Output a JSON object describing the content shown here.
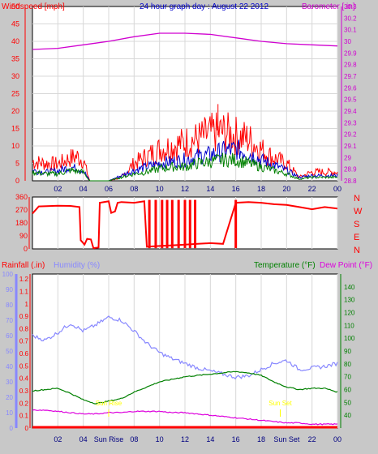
{
  "chart_data": [
    {
      "type": "line",
      "title": "24 hour graph day : August 22 2012",
      "ylabel_left": "Windspeed [mph]",
      "ylabel_right": "Barometer [.in]",
      "x_ticks": [
        "02",
        "04",
        "06",
        "08",
        "10",
        "12",
        "14",
        "16",
        "18",
        "20",
        "22",
        "00"
      ],
      "y_left_ticks": [
        "0",
        "5",
        "10",
        "15",
        "20",
        "25",
        "30",
        "35",
        "40",
        "45",
        "50"
      ],
      "y_right_ticks": [
        "28.8",
        "28.9",
        "29",
        "29.1",
        "29.2",
        "29.3",
        "29.4",
        "29.5",
        "29.6",
        "29.7",
        "29.8",
        "29.9",
        "30",
        "30.1",
        "30.2",
        "30.3"
      ],
      "ylim_left": [
        0,
        50
      ],
      "ylim_right": [
        28.8,
        30.3
      ],
      "series": [
        {
          "axis": "right",
          "color": "#d000d0",
          "points": [
            [
              0,
              29.93
            ],
            [
              2,
              29.94
            ],
            [
              4,
              29.97
            ],
            [
              6,
              30.0
            ],
            [
              8,
              30.04
            ],
            [
              10,
              30.07
            ],
            [
              12,
              30.07
            ],
            [
              14,
              30.06
            ],
            [
              16,
              30.03
            ],
            [
              18,
              30.0
            ],
            [
              20,
              29.98
            ],
            [
              22,
              29.97
            ],
            [
              24,
              29.96
            ]
          ]
        },
        {
          "axis": "left",
          "color": "#ff0000",
          "style": "spiky",
          "points": [
            [
              0,
              5.5
            ],
            [
              1,
              5
            ],
            [
              2,
              4.8
            ],
            [
              3,
              6.5
            ],
            [
              3.5,
              7
            ],
            [
              4,
              6
            ],
            [
              4.5,
              0
            ],
            [
              6,
              0
            ],
            [
              7,
              1
            ],
            [
              8,
              5
            ],
            [
              9,
              7
            ],
            [
              10,
              9
            ],
            [
              11,
              10
            ],
            [
              12,
              11
            ],
            [
              13,
              12
            ],
            [
              14,
              13.5
            ],
            [
              15,
              14
            ],
            [
              16,
              13
            ],
            [
              17,
              12
            ],
            [
              18,
              9
            ],
            [
              19,
              6.5
            ],
            [
              20,
              5
            ],
            [
              21,
              1
            ],
            [
              22,
              2.5
            ],
            [
              23,
              2.5
            ],
            [
              24,
              2.5
            ]
          ]
        },
        {
          "axis": "left",
          "color": "#0000cc",
          "style": "spiky",
          "points": [
            [
              0,
              3
            ],
            [
              1,
              2.5
            ],
            [
              2,
              2.8
            ],
            [
              3,
              4
            ],
            [
              4,
              3
            ],
            [
              4.5,
              0
            ],
            [
              6,
              0
            ],
            [
              8,
              3
            ],
            [
              9,
              4
            ],
            [
              10,
              5
            ],
            [
              11,
              5.5
            ],
            [
              12,
              6
            ],
            [
              13,
              7
            ],
            [
              14,
              7.5
            ],
            [
              15,
              8.5
            ],
            [
              16,
              9
            ],
            [
              17,
              8
            ],
            [
              18,
              6
            ],
            [
              19,
              4.5
            ],
            [
              20,
              3
            ],
            [
              21,
              1
            ],
            [
              22,
              1.5
            ],
            [
              23,
              1.5
            ],
            [
              24,
              1.5
            ]
          ]
        },
        {
          "axis": "left",
          "color": "#008000",
          "style": "spiky",
          "points": [
            [
              0,
              2.5
            ],
            [
              1,
              2
            ],
            [
              2,
              2
            ],
            [
              3,
              3
            ],
            [
              4,
              2.5
            ],
            [
              4.5,
              0
            ],
            [
              6,
              0
            ],
            [
              8,
              2
            ],
            [
              9,
              2.5
            ],
            [
              10,
              3.5
            ],
            [
              11,
              4
            ],
            [
              12,
              4
            ],
            [
              13,
              5
            ],
            [
              14,
              5.5
            ],
            [
              15,
              6
            ],
            [
              16,
              6
            ],
            [
              17,
              5
            ],
            [
              18,
              4
            ],
            [
              19,
              3
            ],
            [
              20,
              2
            ],
            [
              21,
              0.5
            ],
            [
              22,
              1
            ],
            [
              23,
              1
            ],
            [
              24,
              1
            ]
          ]
        }
      ]
    },
    {
      "type": "line",
      "ylabel_right": [
        "N",
        "W",
        "S",
        "E",
        "N"
      ],
      "y_left_ticks": [
        "0",
        "90",
        "180",
        "270",
        "360"
      ],
      "ylim": [
        0,
        360
      ],
      "x_ticks": [
        "02",
        "04",
        "06",
        "08",
        "10",
        "12",
        "14",
        "16",
        "18",
        "20",
        "22",
        "00"
      ],
      "series": [
        {
          "color": "#ff0000",
          "points": [
            [
              0,
              245
            ],
            [
              0.5,
              295
            ],
            [
              2,
              300
            ],
            [
              3,
              298
            ],
            [
              3.7,
              290
            ],
            [
              3.8,
              60
            ],
            [
              4.1,
              30
            ],
            [
              4.3,
              70
            ],
            [
              4.6,
              65
            ],
            [
              4.8,
              5
            ],
            [
              5.2,
              10
            ],
            [
              5.3,
              320
            ],
            [
              6,
              330
            ],
            [
              6.2,
              250
            ],
            [
              6.5,
              260
            ],
            [
              6.7,
              320
            ],
            [
              7,
              325
            ],
            [
              8,
              320
            ],
            [
              8.8,
              330
            ],
            [
              9,
              15
            ],
            [
              10,
              20
            ],
            [
              11,
              25
            ],
            [
              12,
              30
            ],
            [
              13,
              35
            ],
            [
              14,
              40
            ],
            [
              15,
              35
            ],
            [
              16,
              320
            ],
            [
              17,
              325
            ],
            [
              18,
              320
            ],
            [
              19,
              310
            ],
            [
              20,
              305
            ],
            [
              21,
              290
            ],
            [
              22,
              275
            ],
            [
              23,
              290
            ],
            [
              24,
              280
            ]
          ]
        }
      ]
    },
    {
      "type": "line",
      "ylabel_left_1": "Rainfall (.in)",
      "ylabel_left_2": "Humidity (%)",
      "ylabel_right_1": "Temperature (°F)",
      "ylabel_right_2": "Dew Point (°F)",
      "rain_ticks": [
        "0",
        "0.1",
        "0.2",
        "0.3",
        "0.4",
        "0.5",
        "0.6",
        "0.7",
        "0.8",
        "0.9",
        "1",
        "1.1",
        "1.2"
      ],
      "humidity_ticks": [
        "0",
        "10",
        "20",
        "30",
        "40",
        "50",
        "60",
        "70",
        "80",
        "90",
        "100"
      ],
      "temp_ticks": [
        "40",
        "50",
        "60",
        "70",
        "80",
        "90",
        "100",
        "110",
        "120",
        "130",
        "140"
      ],
      "x_ticks": [
        "02",
        "04",
        "Sun Rise",
        "08",
        "10",
        "12",
        "14",
        "16",
        "18",
        "Sun Set",
        "22",
        "00"
      ],
      "annotations": [
        "Sun Rise",
        "Sun Set"
      ],
      "ylim_humidity": [
        0,
        100
      ],
      "ylim_temp": [
        30,
        150
      ],
      "series": [
        {
          "name": "Humidity (%)",
          "color": "#8888ff",
          "points": [
            [
              0,
              60
            ],
            [
              1,
              57
            ],
            [
              2,
              62
            ],
            [
              3,
              68
            ],
            [
              4,
              63
            ],
            [
              5,
              67
            ],
            [
              6,
              72
            ],
            [
              7,
              70
            ],
            [
              8,
              63
            ],
            [
              9,
              55
            ],
            [
              10,
              49
            ],
            [
              11,
              45
            ],
            [
              12,
              42
            ],
            [
              13,
              39
            ],
            [
              14,
              37
            ],
            [
              15,
              35
            ],
            [
              16,
              33
            ],
            [
              17,
              34
            ],
            [
              18,
              38
            ],
            [
              19,
              42
            ],
            [
              20,
              44
            ],
            [
              21,
              38
            ],
            [
              22,
              39
            ],
            [
              23,
              40
            ],
            [
              24,
              42
            ]
          ]
        },
        {
          "name": "Temperature (°F)",
          "color": "#008000",
          "points": [
            [
              0,
              59
            ],
            [
              1,
              60
            ],
            [
              2,
              61
            ],
            [
              3,
              57
            ],
            [
              4,
              52
            ],
            [
              5,
              49
            ],
            [
              6,
              51
            ],
            [
              7,
              53
            ],
            [
              8,
              58
            ],
            [
              9,
              62
            ],
            [
              10,
              66
            ],
            [
              11,
              68
            ],
            [
              12,
              70
            ],
            [
              13,
              71
            ],
            [
              14,
              72
            ],
            [
              15,
              73
            ],
            [
              16,
              74
            ],
            [
              17,
              73
            ],
            [
              18,
              71
            ],
            [
              19,
              66
            ],
            [
              20,
              62
            ],
            [
              21,
              60
            ],
            [
              22,
              61
            ],
            [
              23,
              61
            ],
            [
              24,
              58
            ]
          ]
        },
        {
          "name": "Dew Point (°F)",
          "color": "#dd00dd",
          "points": [
            [
              0,
              44
            ],
            [
              1,
              44
            ],
            [
              2,
              43
            ],
            [
              3,
              42
            ],
            [
              4,
              41
            ],
            [
              5,
              41
            ],
            [
              6,
              42
            ],
            [
              7,
              42
            ],
            [
              8,
              43
            ],
            [
              9,
              43
            ],
            [
              10,
              43
            ],
            [
              11,
              42
            ],
            [
              12,
              42
            ],
            [
              13,
              41
            ],
            [
              14,
              40
            ],
            [
              15,
              39
            ],
            [
              16,
              38
            ],
            [
              17,
              37
            ],
            [
              18,
              36
            ],
            [
              19,
              35
            ],
            [
              20,
              34
            ],
            [
              21,
              34
            ],
            [
              22,
              33
            ],
            [
              23,
              33
            ],
            [
              24,
              33
            ]
          ]
        },
        {
          "name": "Rainfall (.in)",
          "color": "#ff0000",
          "points": [
            [
              0,
              0
            ],
            [
              24,
              0
            ]
          ]
        }
      ]
    }
  ]
}
